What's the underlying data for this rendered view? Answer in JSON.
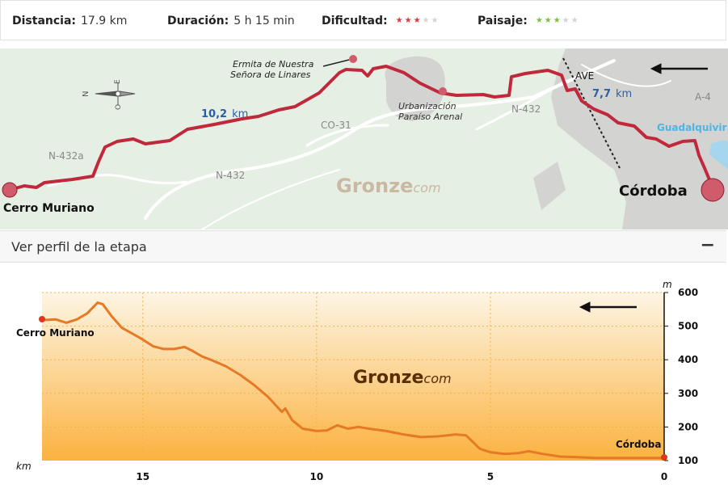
{
  "stats": {
    "distance": {
      "label": "Distancia:",
      "value": "17.9 km"
    },
    "duration": {
      "label": "Duración:",
      "value": "5 h 15 min"
    },
    "difficulty": {
      "label": "Dificultad:",
      "rating": 3,
      "max": 5,
      "color": "#d9393f"
    },
    "scenery": {
      "label": "Paisaje:",
      "rating": 3,
      "max": 5,
      "color": "#7ac142"
    }
  },
  "map": {
    "start_label": "Cerro Muriano",
    "end_label": "Córdoba",
    "poi_ermita_line1": "Ermita de Nuestra",
    "poi_ermita_line2": "Señora de Linares",
    "poi_urb_line1": "Urbanización",
    "poi_urb_line2": "Paraíso Arenal",
    "segment1_num": "10,2",
    "segment1_unit": "km",
    "segment2_num": "7,7",
    "segment2_unit": "km",
    "roads": {
      "n432a": "N-432a",
      "n432_left": "N-432",
      "co31": "CO-31",
      "n432_right": "N-432",
      "a4": "A-4",
      "ave": "AVE"
    },
    "river": "Guadalquivir",
    "compass": {
      "n": "N",
      "s": "S",
      "e": "E",
      "o": "O"
    },
    "watermark_main": "Gronze",
    "watermark_sub": "com",
    "colors": {
      "route": "#c0283c",
      "background": "#e6efe3",
      "urban": "#d3d4d2",
      "road": "#ffffff",
      "river": "#a6d6ee",
      "km_label": "#2b5ea7"
    }
  },
  "profile": {
    "title": "Ver perfil de la etapa",
    "toggle": "−",
    "watermark_main": "Gronze",
    "watermark_sub": "com"
  },
  "chart_data": {
    "type": "area",
    "title": "",
    "xlabel": "km",
    "ylabel": "m",
    "xlim": [
      17.9,
      0
    ],
    "ylim": [
      100,
      600
    ],
    "x_ticks": [
      15,
      10,
      5,
      0
    ],
    "y_ticks": [
      100,
      200,
      300,
      400,
      500,
      600
    ],
    "grid": true,
    "start_label": "Cerro Muriano",
    "end_label": "Córdoba",
    "direction": "right-to-left",
    "colors": {
      "line": "#e57a24",
      "fill_top": "#fdf5e4",
      "fill_bottom": "#fbb23f",
      "grid": "#f1b34a",
      "marker": "#d8391f"
    },
    "series": [
      {
        "x": [
          17.9,
          17.5,
          17.2,
          16.9,
          16.6,
          16.3,
          16.15,
          15.9,
          15.6,
          15.3,
          15.0,
          14.7,
          14.4,
          14.1,
          13.8,
          13.6,
          13.3,
          13.0,
          12.6,
          12.2,
          11.8,
          11.4,
          11.0,
          10.9,
          10.7,
          10.4,
          10.0,
          9.7,
          9.4,
          9.1,
          8.8,
          8.5,
          8.0,
          7.5,
          7.0,
          6.5,
          6.0,
          5.7,
          5.5,
          5.3,
          5.0,
          4.6,
          4.2,
          3.9,
          3.5,
          3.0,
          2.5,
          2.0,
          1.5,
          1.0,
          0.5,
          0.0
        ],
        "y": [
          518,
          520,
          510,
          520,
          538,
          570,
          565,
          530,
          495,
          478,
          460,
          440,
          432,
          432,
          438,
          428,
          410,
          398,
          380,
          355,
          325,
          290,
          245,
          255,
          220,
          195,
          188,
          190,
          205,
          195,
          200,
          195,
          188,
          178,
          170,
          172,
          178,
          175,
          155,
          135,
          125,
          120,
          122,
          128,
          120,
          112,
          110,
          108,
          108,
          108,
          108,
          108
        ]
      }
    ]
  }
}
